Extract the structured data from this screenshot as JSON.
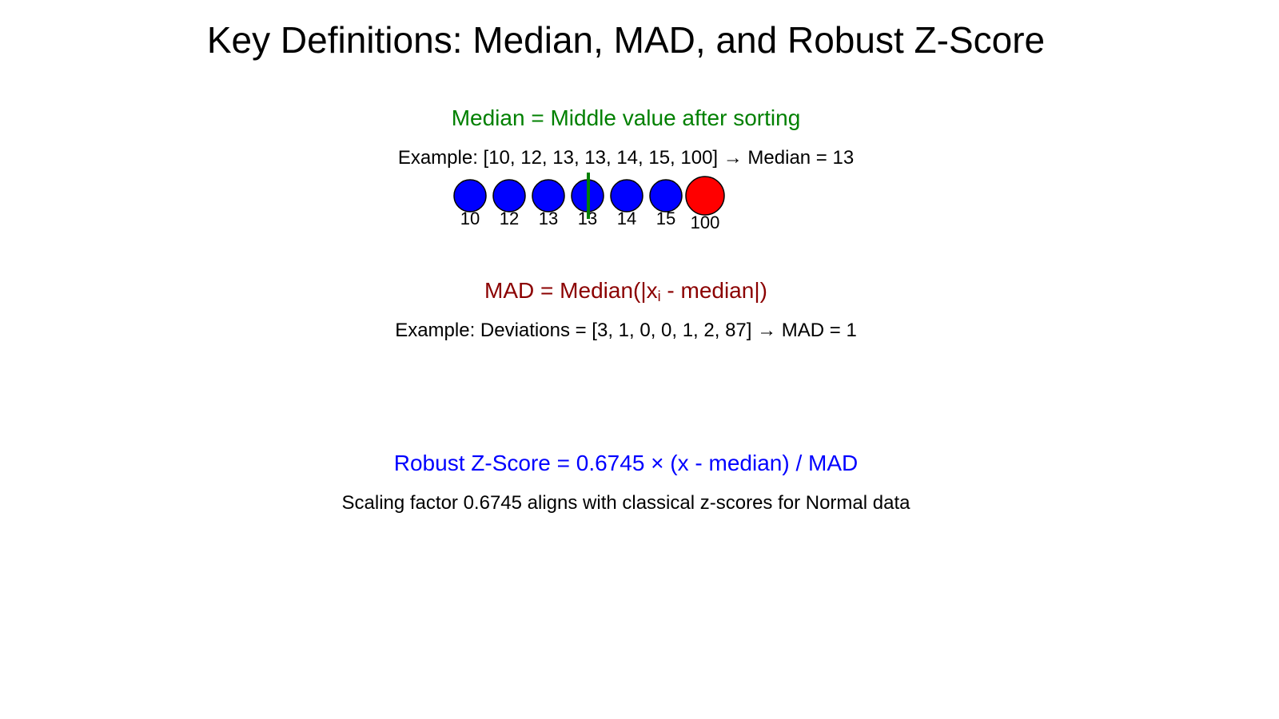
{
  "title": "Key Definitions: Median, MAD, and Robust Z-Score",
  "median": {
    "heading": "Median = Middle value after sorting",
    "example": "Example: [10, 12, 13, 13, 14, 15, 100] → Median = 13",
    "values": [
      "10",
      "12",
      "13",
      "13",
      "14",
      "15",
      "100"
    ],
    "outlier_index": 6,
    "median_index": 3,
    "colors": {
      "heading": "#008000",
      "normal": "#0000ff",
      "outlier": "#ff0000",
      "median_line": "#008000"
    }
  },
  "mad": {
    "heading_main": "MAD = Median(|x",
    "heading_sub": "i",
    "heading_end": " - median|)",
    "example": "Example: Deviations = [3, 1, 0, 0, 1, 2, 87] → MAD = 1",
    "color": "#8b0000"
  },
  "robust": {
    "heading": "Robust Z-Score = 0.6745 × (x - median) / MAD",
    "note": "Scaling factor 0.6745 aligns with classical z-scores for Normal data",
    "color": "#0000ff"
  }
}
